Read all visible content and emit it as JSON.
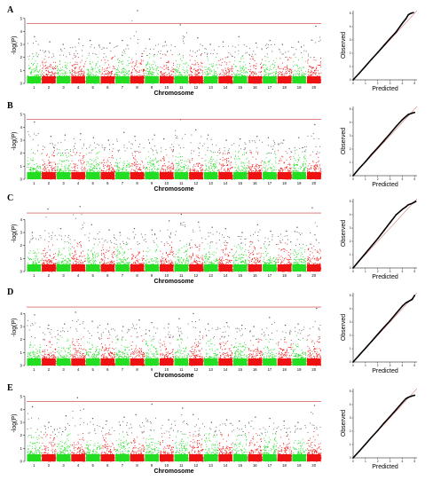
{
  "colors": {
    "odd_chromosome": "#22dd22",
    "even_chromosome": "#ee1111",
    "threshold_line": "#cc3333",
    "qq_points": "#000000",
    "qq_expected_line": "#cc3333"
  },
  "chart_data": [
    {
      "type": "scatter",
      "variant": "manhattan",
      "panel_label": "A",
      "xlabel": "Chromosome",
      "ylabel": "-log(P)",
      "categories": [
        "1",
        "2",
        "3",
        "4",
        "5",
        "6",
        "7",
        "8",
        "9",
        "10",
        "11",
        "12",
        "13",
        "14",
        "15",
        "16",
        "17",
        "18",
        "19",
        "20"
      ],
      "yticks": [
        0,
        1,
        2,
        3,
        4,
        5
      ],
      "ylim": [
        0,
        5.6
      ],
      "threshold": 4.6,
      "peak_values": [
        3.6,
        3.2,
        3.0,
        3.4,
        3.3,
        3.1,
        3.3,
        5.6,
        3.4,
        3.2,
        4.5,
        3.5,
        3.0,
        3.2,
        3.6,
        3.1,
        3.3,
        3.0,
        3.2,
        4.4
      ]
    },
    {
      "type": "scatter",
      "variant": "manhattan",
      "panel_label": "B",
      "xlabel": "Chromosome",
      "ylabel": "-log(P)",
      "categories": [
        "1",
        "2",
        "3",
        "4",
        "5",
        "6",
        "7",
        "8",
        "9",
        "10",
        "11",
        "12",
        "13",
        "14",
        "15",
        "16",
        "17",
        "18",
        "19",
        "20"
      ],
      "yticks": [
        0,
        1,
        2,
        3,
        4,
        5
      ],
      "ylim": [
        0,
        5.6
      ],
      "threshold": 4.6,
      "peak_values": [
        4.4,
        3.3,
        3.4,
        3.5,
        3.2,
        3.0,
        3.6,
        3.3,
        3.4,
        3.1,
        4.6,
        3.8,
        3.4,
        3.0,
        3.1,
        3.3,
        3.2,
        3.0,
        3.2,
        4.2
      ]
    },
    {
      "type": "scatter",
      "variant": "manhattan",
      "panel_label": "C",
      "xlabel": "Chromosome",
      "ylabel": "-log(P)",
      "categories": [
        "1",
        "2",
        "3",
        "4",
        "5",
        "6",
        "7",
        "8",
        "9",
        "10",
        "11",
        "12",
        "13",
        "14",
        "15",
        "16",
        "17",
        "18",
        "19",
        "20"
      ],
      "yticks": [
        0,
        1,
        2,
        3,
        4
      ],
      "ylim": [
        0,
        5.6
      ],
      "threshold": 4.5,
      "peak_values": [
        3.0,
        4.8,
        3.3,
        5.0,
        3.6,
        3.2,
        3.0,
        3.3,
        3.2,
        3.9,
        4.4,
        3.8,
        3.4,
        3.3,
        3.0,
        3.6,
        3.1,
        3.1,
        3.4,
        4.9
      ]
    },
    {
      "type": "scatter",
      "variant": "manhattan",
      "panel_label": "D",
      "xlabel": "Chromosome",
      "ylabel": "-log(P)",
      "categories": [
        "1",
        "2",
        "3",
        "4",
        "5",
        "6",
        "7",
        "8",
        "9",
        "10",
        "11",
        "12",
        "13",
        "14",
        "15",
        "16",
        "17",
        "18",
        "19",
        "20"
      ],
      "yticks": [
        0,
        1,
        2,
        3,
        4
      ],
      "ylim": [
        0,
        5.6
      ],
      "threshold": 4.5,
      "peak_values": [
        3.9,
        3.1,
        3.2,
        4.1,
        3.4,
        3.2,
        3.0,
        3.5,
        3.3,
        3.2,
        3.6,
        4.0,
        3.2,
        3.3,
        3.1,
        3.0,
        3.7,
        3.1,
        3.2,
        4.4
      ]
    },
    {
      "type": "scatter",
      "variant": "manhattan",
      "panel_label": "E",
      "xlabel": "Chromosome",
      "ylabel": "-log(P)",
      "categories": [
        "1",
        "2",
        "3",
        "4",
        "5",
        "6",
        "7",
        "8",
        "9",
        "10",
        "11",
        "12",
        "13",
        "14",
        "15",
        "16",
        "17",
        "18",
        "19",
        "20"
      ],
      "yticks": [
        0,
        1,
        2,
        3,
        4,
        5
      ],
      "ylim": [
        0,
        5.6
      ],
      "threshold": 4.6,
      "peak_values": [
        4.2,
        3.0,
        3.5,
        4.9,
        3.3,
        3.1,
        3.4,
        3.6,
        4.4,
        3.2,
        4.1,
        3.6,
        3.0,
        3.2,
        3.1,
        3.4,
        3.3,
        3.1,
        3.0,
        4.3
      ]
    },
    {
      "type": "scatter",
      "variant": "qq",
      "panel_label": "A",
      "xlabel": "Predicted",
      "ylabel": "Observed",
      "xticks": [
        0,
        1,
        2,
        3,
        4,
        5
      ],
      "yticks": [
        0,
        1,
        2,
        3,
        4,
        5
      ],
      "lim": [
        0,
        5.2
      ],
      "points": [
        [
          0.5,
          0.5
        ],
        [
          1,
          1.02
        ],
        [
          1.5,
          1.55
        ],
        [
          2,
          2.05
        ],
        [
          2.5,
          2.58
        ],
        [
          3,
          3.1
        ],
        [
          3.5,
          3.6
        ],
        [
          4,
          4.25
        ],
        [
          4.3,
          4.6
        ],
        [
          4.5,
          4.9
        ],
        [
          4.7,
          5.0
        ],
        [
          4.9,
          5.05
        ]
      ]
    },
    {
      "type": "scatter",
      "variant": "qq",
      "panel_label": "B",
      "xlabel": "Predicted",
      "ylabel": "Observed",
      "xticks": [
        0,
        1,
        2,
        3,
        4,
        5
      ],
      "yticks": [
        0,
        1,
        2,
        3,
        4,
        5
      ],
      "lim": [
        0,
        5.2
      ],
      "points": [
        [
          0.5,
          0.55
        ],
        [
          1,
          1.05
        ],
        [
          1.5,
          1.6
        ],
        [
          2,
          2.1
        ],
        [
          2.5,
          2.62
        ],
        [
          3,
          3.15
        ],
        [
          3.5,
          3.7
        ],
        [
          4,
          4.2
        ],
        [
          4.3,
          4.45
        ],
        [
          4.5,
          4.6
        ],
        [
          4.8,
          4.7
        ],
        [
          5.0,
          4.75
        ]
      ]
    },
    {
      "type": "scatter",
      "variant": "qq",
      "panel_label": "C",
      "xlabel": "Predicted",
      "ylabel": "Observed",
      "xticks": [
        0,
        1,
        2,
        3,
        4,
        5
      ],
      "yticks": [
        0,
        1,
        2,
        3,
        4,
        5
      ],
      "lim": [
        0,
        5.2
      ],
      "points": [
        [
          0.5,
          0.55
        ],
        [
          1,
          1.1
        ],
        [
          1.5,
          1.65
        ],
        [
          2,
          2.2
        ],
        [
          2.5,
          2.8
        ],
        [
          3,
          3.4
        ],
        [
          3.5,
          4.0
        ],
        [
          4,
          4.4
        ],
        [
          4.3,
          4.6
        ],
        [
          4.5,
          4.75
        ],
        [
          4.8,
          4.85
        ],
        [
          5.1,
          5.0
        ]
      ]
    },
    {
      "type": "scatter",
      "variant": "qq",
      "panel_label": "D",
      "xlabel": "Predicted",
      "ylabel": "Observed",
      "xticks": [
        0,
        1,
        2,
        3,
        4,
        5
      ],
      "yticks": [
        0,
        1,
        2,
        3,
        4,
        5
      ],
      "lim": [
        0,
        5.2
      ],
      "points": [
        [
          0.5,
          0.52
        ],
        [
          1,
          1.03
        ],
        [
          1.5,
          1.55
        ],
        [
          2,
          2.08
        ],
        [
          2.5,
          2.6
        ],
        [
          3,
          3.1
        ],
        [
          3.5,
          3.65
        ],
        [
          4,
          4.2
        ],
        [
          4.3,
          4.45
        ],
        [
          4.5,
          4.55
        ],
        [
          4.8,
          4.7
        ],
        [
          5.0,
          5.0
        ]
      ]
    },
    {
      "type": "scatter",
      "variant": "qq",
      "panel_label": "E",
      "xlabel": "Predicted",
      "ylabel": "Observed",
      "xticks": [
        0,
        1,
        2,
        3,
        4,
        5
      ],
      "yticks": [
        0,
        1,
        2,
        3,
        4,
        5
      ],
      "lim": [
        0,
        5.2
      ],
      "points": [
        [
          0.5,
          0.5
        ],
        [
          1,
          1.02
        ],
        [
          1.5,
          1.55
        ],
        [
          2,
          2.05
        ],
        [
          2.5,
          2.6
        ],
        [
          3,
          3.1
        ],
        [
          3.5,
          3.62
        ],
        [
          4,
          4.15
        ],
        [
          4.3,
          4.45
        ],
        [
          4.5,
          4.55
        ],
        [
          4.8,
          4.65
        ],
        [
          5.0,
          4.7
        ]
      ]
    }
  ]
}
